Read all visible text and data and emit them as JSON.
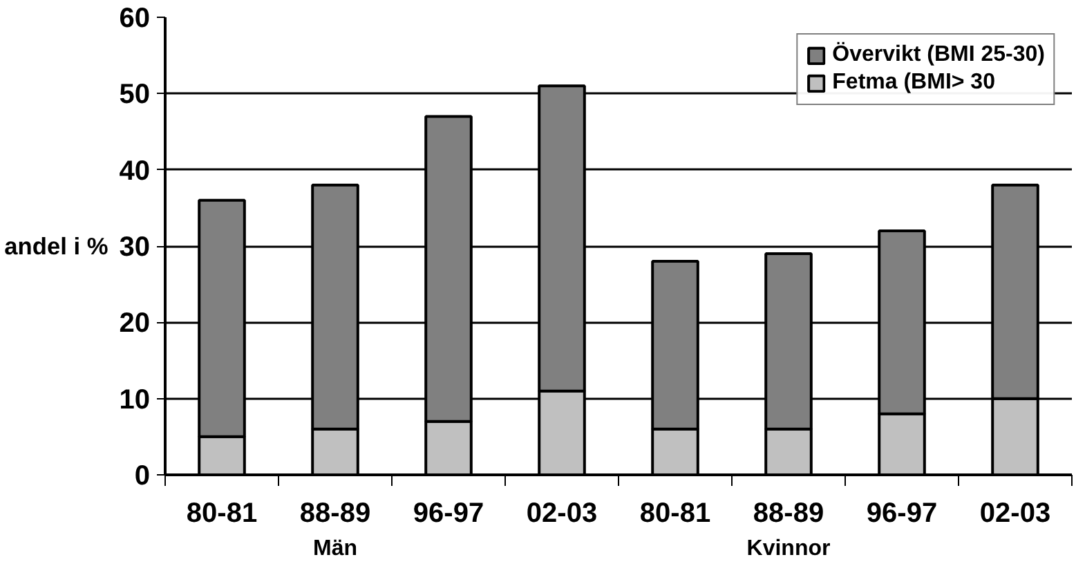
{
  "chart_data": {
    "type": "bar",
    "stacked": true,
    "ylabel": "andel i %",
    "categories": [
      "80-81",
      "88-89",
      "96-97",
      "02-03",
      "80-81",
      "88-89",
      "96-97",
      "02-03"
    ],
    "series": [
      {
        "name": "Fetma (BMI> 30",
        "color": "#c0c0c0",
        "values": [
          5,
          6,
          7,
          11,
          6,
          6,
          8,
          10
        ]
      },
      {
        "name": "Övervikt (BMI 25-30)",
        "color": "#808080",
        "values": [
          31,
          32,
          40,
          40,
          22,
          23,
          24,
          28
        ]
      }
    ],
    "ylim": [
      0,
      60
    ],
    "yticks": [
      0,
      10,
      20,
      30,
      40,
      50,
      60
    ],
    "grid": "y",
    "legend": "top right",
    "annotations": [
      "Män",
      "Kvinnor"
    ]
  }
}
